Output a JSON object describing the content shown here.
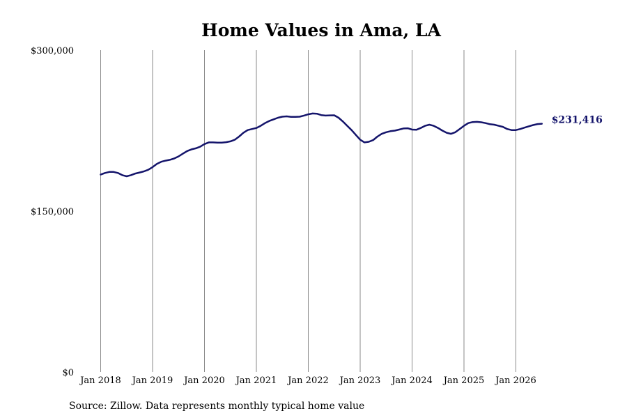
{
  "chart_data": {
    "type": "line",
    "title": "Home Values in Ama, LA",
    "source": "Source: Zillow. Data represents monthly typical home value",
    "ylim": [
      0,
      300000
    ],
    "y_ticks": [
      {
        "value": 0,
        "label": "$0"
      },
      {
        "value": 150000,
        "label": "$150,000"
      },
      {
        "value": 300000,
        "label": "$300,000"
      }
    ],
    "x_ticks": [
      {
        "value": "2018-01",
        "label": "Jan 2018"
      },
      {
        "value": "2019-01",
        "label": "Jan 2019"
      },
      {
        "value": "2020-01",
        "label": "Jan 2020"
      },
      {
        "value": "2021-01",
        "label": "Jan 2021"
      },
      {
        "value": "2022-01",
        "label": "Jan 2022"
      },
      {
        "value": "2023-01",
        "label": "Jan 2023"
      },
      {
        "value": "2024-01",
        "label": "Jan 2024"
      },
      {
        "value": "2025-01",
        "label": "Jan 2025"
      },
      {
        "value": "2026-01",
        "label": "Jan 2026"
      }
    ],
    "grid": "vertical",
    "line_color": "#14146b",
    "end_label": "$231,416",
    "series": [
      {
        "x": [
          "2018-01",
          "2018-02",
          "2018-03",
          "2018-04",
          "2018-05",
          "2018-06",
          "2018-07",
          "2018-08",
          "2018-09",
          "2018-10",
          "2018-11",
          "2018-12",
          "2019-01",
          "2019-02",
          "2019-03",
          "2019-04",
          "2019-05",
          "2019-06",
          "2019-07",
          "2019-08",
          "2019-09",
          "2019-10",
          "2019-11",
          "2019-12",
          "2020-01",
          "2020-02",
          "2020-03",
          "2020-04",
          "2020-05",
          "2020-06",
          "2020-07",
          "2020-08",
          "2020-09",
          "2020-10",
          "2020-11",
          "2020-12",
          "2021-01",
          "2021-02",
          "2021-03",
          "2021-04",
          "2021-05",
          "2021-06",
          "2021-07",
          "2021-08",
          "2021-09",
          "2021-10",
          "2021-11",
          "2021-12",
          "2022-01",
          "2022-02",
          "2022-03",
          "2022-04",
          "2022-05",
          "2022-06",
          "2022-07",
          "2022-08",
          "2022-09",
          "2022-10",
          "2022-11",
          "2022-12",
          "2023-01",
          "2023-02",
          "2023-03",
          "2023-04",
          "2023-05",
          "2023-06",
          "2023-07",
          "2023-08",
          "2023-09",
          "2023-10",
          "2023-11",
          "2023-12",
          "2024-01",
          "2024-02",
          "2024-03",
          "2024-04",
          "2024-05",
          "2024-06",
          "2024-07",
          "2024-08",
          "2024-09",
          "2024-10",
          "2024-11",
          "2024-12",
          "2025-01",
          "2025-02",
          "2025-03",
          "2025-04",
          "2025-05",
          "2025-06",
          "2025-07",
          "2025-08",
          "2025-09",
          "2025-10",
          "2025-11",
          "2025-12",
          "2026-01",
          "2026-02",
          "2026-03",
          "2026-04",
          "2026-05",
          "2026-06",
          "2026-07"
        ],
        "values": [
          184000,
          185500,
          186500,
          186500,
          185500,
          183500,
          182500,
          183500,
          185000,
          186000,
          187000,
          188500,
          191000,
          194000,
          196000,
          197000,
          197800,
          199000,
          201000,
          203500,
          206000,
          207500,
          208500,
          210000,
          212500,
          214000,
          214000,
          213800,
          213800,
          214200,
          215000,
          216500,
          219500,
          223000,
          225500,
          226500,
          227500,
          229500,
          232000,
          234000,
          235500,
          237000,
          238000,
          238300,
          237800,
          237800,
          238000,
          239000,
          240200,
          241000,
          240800,
          239500,
          239000,
          239200,
          239300,
          237000,
          233500,
          229500,
          225500,
          221000,
          216500,
          214000,
          214600,
          216200,
          219500,
          222000,
          223500,
          224500,
          225000,
          226000,
          227000,
          227200,
          226000,
          225800,
          227500,
          229500,
          230500,
          229500,
          227500,
          225000,
          223000,
          222000,
          223500,
          226500,
          229500,
          232000,
          233000,
          233200,
          232800,
          232000,
          231000,
          230500,
          229500,
          228500,
          226500,
          225500,
          225500,
          226500,
          227800,
          229000,
          230200,
          231100,
          231416
        ]
      }
    ]
  }
}
